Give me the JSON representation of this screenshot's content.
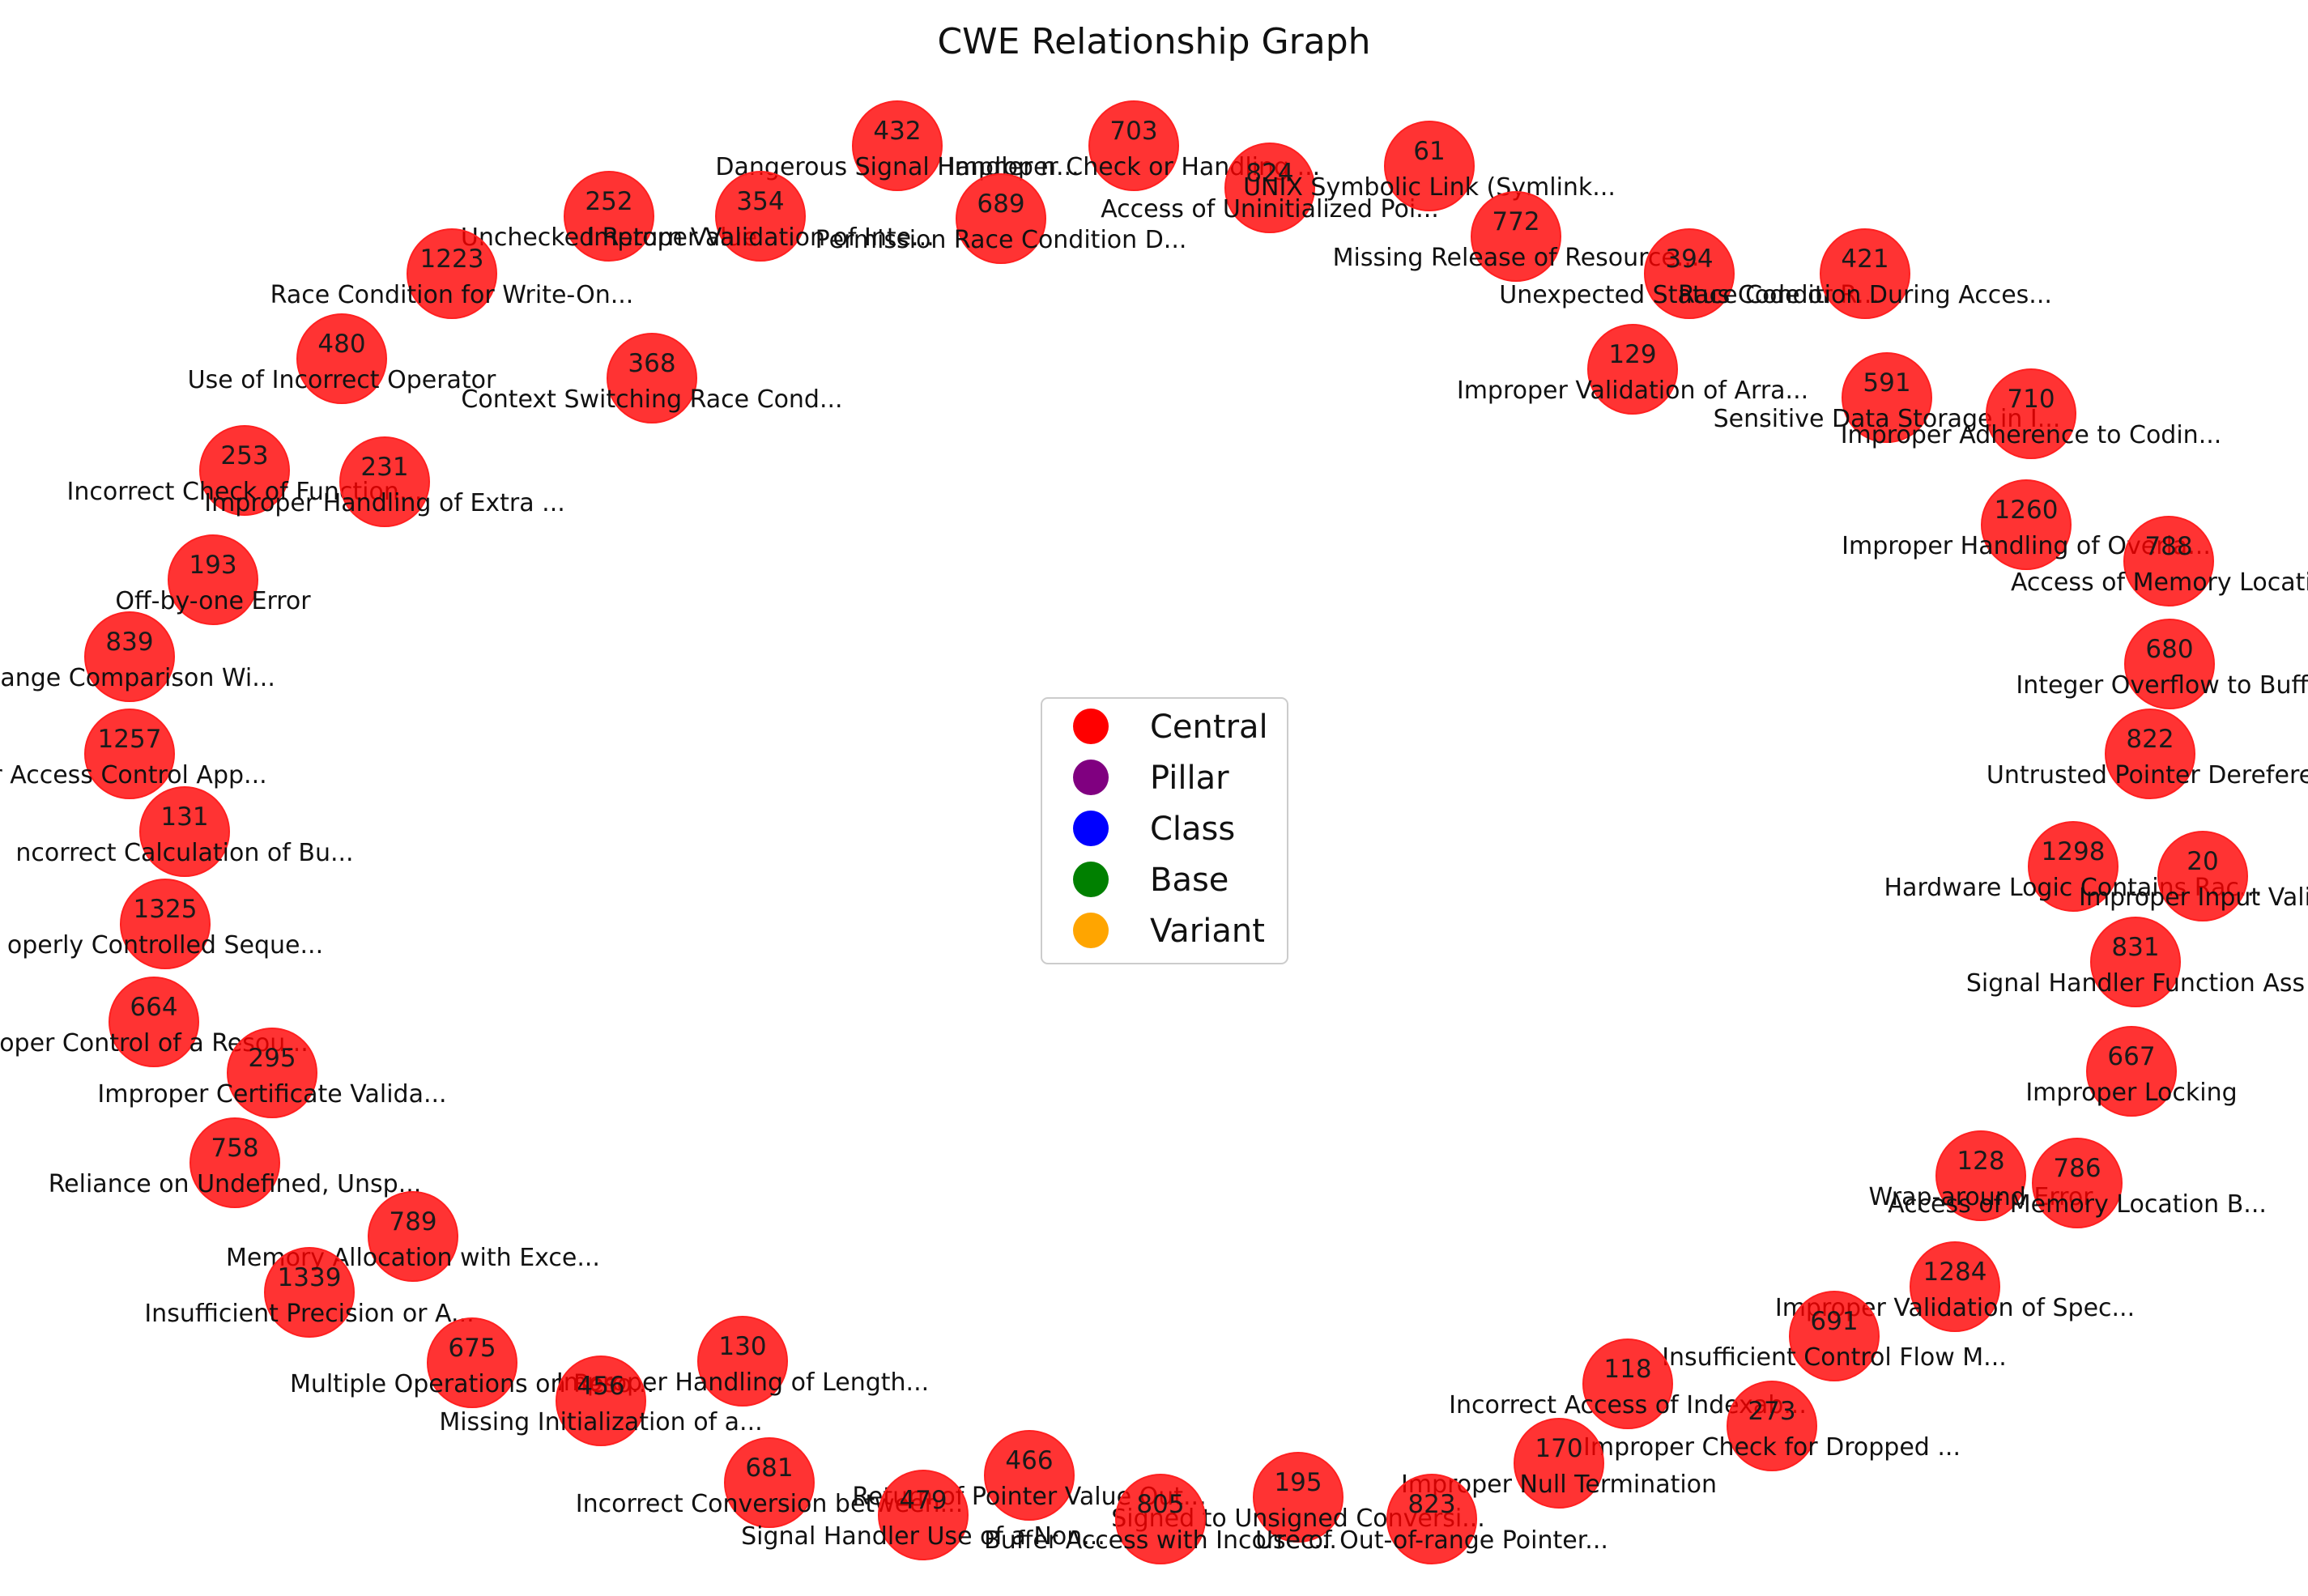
{
  "title": "CWE Relationship Graph",
  "colors": {
    "Central": "#ff0000",
    "Pillar": "#800080",
    "Class": "#0000ff",
    "Base": "#008000",
    "Variant": "#ffa500"
  },
  "legend": [
    {
      "label": "Central",
      "color": "#ff0000"
    },
    {
      "label": "Pillar",
      "color": "#800080"
    },
    {
      "label": "Class",
      "color": "#0000ff"
    },
    {
      "label": "Base",
      "color": "#008000"
    },
    {
      "label": "Variant",
      "color": "#ffa500"
    }
  ],
  "nodes": [
    {
      "id": "432",
      "name": "Dangerous Signal Handler n..."
    },
    {
      "id": "703",
      "name": "Improper Check or Handling ..."
    },
    {
      "id": "824",
      "name": "Access of Uninitialized Poi..."
    },
    {
      "id": "61",
      "name": "UNIX Symbolic Link (Symlink..."
    },
    {
      "id": "252",
      "name": "Unchecked Return Value"
    },
    {
      "id": "354",
      "name": "Improper Validation of Inte..."
    },
    {
      "id": "689",
      "name": "Permission Race Condition D..."
    },
    {
      "id": "772",
      "name": "Missing Release of Resource..."
    },
    {
      "id": "1223",
      "name": "Race Condition for Write-On..."
    },
    {
      "id": "394",
      "name": "Unexpected Status Code or R..."
    },
    {
      "id": "421",
      "name": "Race Condition During Acces..."
    },
    {
      "id": "480",
      "name": "Use of Incorrect Operator"
    },
    {
      "id": "368",
      "name": "Context Switching Race Cond..."
    },
    {
      "id": "129",
      "name": "Improper Validation of Arra..."
    },
    {
      "id": "591",
      "name": "Sensitive Data Storage in I..."
    },
    {
      "id": "710",
      "name": "Improper Adherence to Codin..."
    },
    {
      "id": "253",
      "name": "Incorrect Check of Function..."
    },
    {
      "id": "231",
      "name": "Improper Handling of Extra ..."
    },
    {
      "id": "1260",
      "name": "Improper Handling of Overla..."
    },
    {
      "id": "788",
      "name": "Access of Memory Locatio"
    },
    {
      "id": "193",
      "name": "Off-by-one Error"
    },
    {
      "id": "839",
      "name": "Range Comparison Wi..."
    },
    {
      "id": "680",
      "name": "Integer Overflow to Buffe"
    },
    {
      "id": "1257",
      "name": "r Access Control App..."
    },
    {
      "id": "822",
      "name": "Untrusted Pointer Derefere"
    },
    {
      "id": "131",
      "name": "ncorrect Calculation of Bu..."
    },
    {
      "id": "1298",
      "name": "Hardware Logic Contains Rac..."
    },
    {
      "id": "20",
      "name": "Improper Input Valid"
    },
    {
      "id": "1325",
      "name": "operly Controlled Seque..."
    },
    {
      "id": "831",
      "name": "Signal Handler Function Ass"
    },
    {
      "id": "664",
      "name": "oper Control of a Resou..."
    },
    {
      "id": "667",
      "name": "Improper Locking"
    },
    {
      "id": "295",
      "name": "Improper Certificate Valida..."
    },
    {
      "id": "758",
      "name": "Reliance on Undefined, Unsp..."
    },
    {
      "id": "128",
      "name": "Wrap-around Error"
    },
    {
      "id": "786",
      "name": "Access of Memory Location B..."
    },
    {
      "id": "789",
      "name": "Memory Allocation with Exce..."
    },
    {
      "id": "1339",
      "name": "Insufficient Precision or A..."
    },
    {
      "id": "1284",
      "name": "Improper Validation of Spec..."
    },
    {
      "id": "691",
      "name": "Insufficient Control Flow M..."
    },
    {
      "id": "675",
      "name": "Multiple Operations on Reso..."
    },
    {
      "id": "130",
      "name": "Improper Handling of Length..."
    },
    {
      "id": "118",
      "name": "Incorrect Access of Indexab..."
    },
    {
      "id": "273",
      "name": "Improper Check for Dropped ..."
    },
    {
      "id": "456",
      "name": "Missing Initialization of a..."
    },
    {
      "id": "170",
      "name": "Improper Null Termination"
    },
    {
      "id": "681",
      "name": "Incorrect Conversion between..."
    },
    {
      "id": "466",
      "name": "Return of Pointer Value Out..."
    },
    {
      "id": "195",
      "name": "Signed to Unsigned Conversi..."
    },
    {
      "id": "479",
      "name": "Signal Handler Use of a Non..."
    },
    {
      "id": "805",
      "name": "Buffer Access with Incorrec..."
    },
    {
      "id": "823",
      "name": "Use of Out-of-range Pointer..."
    }
  ]
}
